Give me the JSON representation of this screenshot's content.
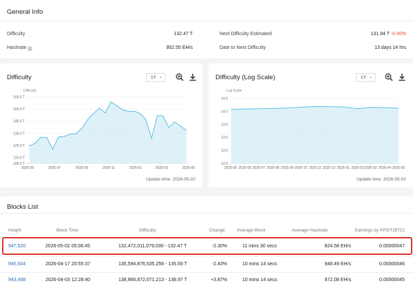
{
  "general": {
    "title": "General Info",
    "difficulty_label": "Difficulty",
    "difficulty_value": "132.47 T",
    "hashrate_label": "Hashrate",
    "hashrate_info_icon": "info-icon",
    "hashrate_value": "952.55 EH/s",
    "next_diff_label": "Next Difficulty Estimated",
    "next_diff_value": "131.94 T",
    "next_diff_change": "-0.40%",
    "date_next_label": "Date to Next Difficulty",
    "date_next_value": "13 days 14 hrs"
  },
  "difficulty_chart": {
    "title": "Difficulty",
    "range": "1Y",
    "zoom_icon": "zoom-in-icon",
    "download_icon": "download-icon",
    "update_time": "Update time: 2026-05-02"
  },
  "log_chart": {
    "title": "Difficulty (Log Scale)",
    "range": "1Y",
    "zoom_icon": "zoom-in-icon",
    "download_icon": "download-icon",
    "update_time": "Update time: 2026-05-02"
  },
  "chart_data": [
    {
      "type": "area",
      "title": "Difficulty",
      "ylabel": "Difficulty",
      "watermark": "CloverPool",
      "x_ticks": [
        "2025-05",
        "2025-07",
        "2025-09",
        "2025-11",
        "2026-01",
        "2026-03",
        "2026-05"
      ],
      "y_ticks": [
        "105.3 T",
        "110.0 T",
        "120.0 T",
        "130.0 T",
        "140.0 T",
        "150.0 T",
        "160.0 T"
      ],
      "ylim": [
        105.3,
        161
      ],
      "x": [
        "2025-05-05",
        "2025-05-18",
        "2025-05-31",
        "2025-06-14",
        "2025-06-27",
        "2025-07-10",
        "2025-07-24",
        "2025-08-06",
        "2025-08-19",
        "2025-09-02",
        "2025-09-15",
        "2025-09-28",
        "2025-10-11",
        "2025-10-24",
        "2025-11-06",
        "2025-11-20",
        "2025-12-03",
        "2025-12-16",
        "2025-12-29",
        "2026-01-11",
        "2026-01-24",
        "2026-02-06",
        "2026-02-19",
        "2026-03-04",
        "2026-03-17",
        "2026-03-30",
        "2026-04-13",
        "2026-04-26"
      ],
      "values": [
        119.8,
        121.7,
        126.9,
        126.4,
        116.9,
        126.9,
        127.6,
        129.4,
        129.6,
        134.6,
        141.7,
        146.7,
        150.8,
        146.9,
        155.9,
        152.7,
        149.3,
        148.2,
        148.2,
        146.5,
        141.5,
        125.9,
        144.6,
        144.5,
        134.7,
        139.4,
        136.0,
        132.5
      ]
    },
    {
      "type": "area",
      "title": "Difficulty (Log Scale)",
      "ylabel": "Log Scale",
      "watermark": "CloverPool",
      "x_ticks": [
        "2025-05",
        "2025-06",
        "2025-07",
        "2025-08",
        "2025-09",
        "2025-10",
        "2025-11",
        "2025-12",
        "2026-01",
        "2026-02",
        "2026-03",
        "2026-04",
        "2026-05"
      ],
      "y_ticks": [
        "12.0",
        "12.5",
        "13.0",
        "13.5",
        "14.0",
        "14.5"
      ],
      "ylim": [
        12.0,
        14.6
      ],
      "x": [
        "2025-05-02",
        "2025-06-01",
        "2025-07-01",
        "2025-08-01",
        "2025-09-01",
        "2025-10-01",
        "2025-11-01",
        "2025-12-01",
        "2026-01-01",
        "2026-02-01",
        "2026-03-01",
        "2026-04-01",
        "2026-05-01"
      ],
      "values": [
        14.08,
        14.09,
        14.1,
        14.11,
        14.13,
        14.16,
        14.19,
        14.18,
        14.17,
        14.1,
        14.15,
        14.14,
        14.12
      ]
    }
  ],
  "blocks": {
    "title": "Blocks List",
    "headers": {
      "height": "Height",
      "time": "Block Time",
      "difficulty": "Difficulty",
      "change": "Change",
      "avg_block": "Average Block",
      "avg_hash": "Average Hashrate",
      "earnings": "Earnings by PPS/T(BTC)"
    },
    "rows": [
      {
        "height": "947,520",
        "time": "2026-05-02 05:06:45",
        "difficulty": "132,472,011,079,030 - 132.47 T",
        "change": "-2.30%",
        "avg_block": "11 mins 30 secs",
        "avg_hash": "824.58 EH/s",
        "earnings": "0.00000047"
      },
      {
        "height": "945,504",
        "time": "2026-04-17 20:55:37",
        "difficulty": "135,594,876,535,256 - 135.59 T",
        "change": "-2.43%",
        "avg_block": "10 mins 14 secs",
        "avg_hash": "948.49 EH/s",
        "earnings": "0.00000046"
      },
      {
        "height": "943,488",
        "time": "2026-04-03 12:28:40",
        "difficulty": "138,966,872,071,213 - 138.97 T",
        "change": "+3.87%",
        "avg_block": "10 mins 14 secs",
        "avg_hash": "972.08 EH/s",
        "earnings": "0.00000045"
      }
    ]
  },
  "colors": {
    "line": "#5bbfe0",
    "area": "#d8eef8",
    "negative": "#e5484d",
    "positive": "#22a06b",
    "link": "#2f6fb3",
    "highlight": "#d9342b"
  }
}
